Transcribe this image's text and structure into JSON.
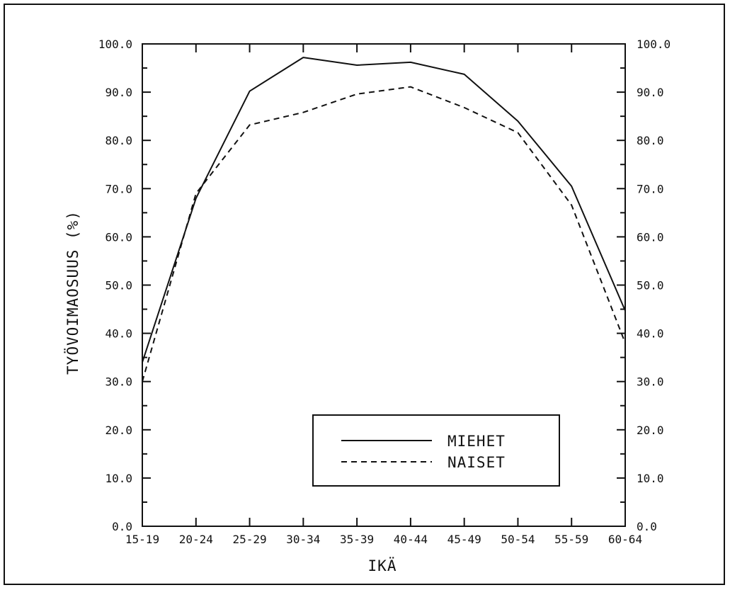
{
  "chart_data": {
    "type": "line",
    "title": "",
    "xlabel": "IKÄ",
    "ylabel": "TYÖVOIMAOSUUS (%)",
    "categories": [
      "15-19",
      "20-24",
      "25-29",
      "30-34",
      "35-39",
      "40-44",
      "45-49",
      "50-54",
      "55-59",
      "60-64"
    ],
    "ylim": [
      0,
      100
    ],
    "yticks": [
      "0.0",
      "10.0",
      "20.0",
      "30.0",
      "40.0",
      "50.0",
      "60.0",
      "70.0",
      "80.0",
      "90.0",
      "100.0"
    ],
    "grid": false,
    "legend_position": "bottom-right",
    "series": [
      {
        "name": "MIEHET",
        "style": "solid",
        "values": [
          34.0,
          68.0,
          90.2,
          97.2,
          95.6,
          96.2,
          93.7,
          84.0,
          70.5,
          44.7
        ]
      },
      {
        "name": "NAISET",
        "style": "dashed",
        "values": [
          30.0,
          69.0,
          83.2,
          85.8,
          89.6,
          91.1,
          86.8,
          81.6,
          66.6,
          38.0
        ]
      }
    ],
    "colors": {
      "line": "#111111",
      "background": "#ffffff"
    }
  }
}
